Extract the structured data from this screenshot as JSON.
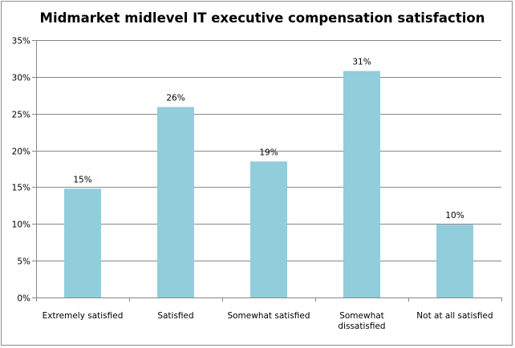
{
  "chart_data": {
    "type": "bar",
    "title": "Midmarket midlevel IT executive compensation satisfaction",
    "categories": [
      [
        "Extremely satisfied"
      ],
      [
        "Satisfied"
      ],
      [
        "Somewhat satisfied"
      ],
      [
        "Somewhat",
        "dissatisfied"
      ],
      [
        "Not at all satisfied"
      ]
    ],
    "values": [
      15,
      26,
      19,
      31,
      10
    ],
    "plotted_values": [
      14.8,
      25.9,
      18.5,
      30.8,
      9.9
    ],
    "data_labels": [
      "15%",
      "26%",
      "19%",
      "31%",
      "10%"
    ],
    "ylim": [
      0,
      35
    ],
    "yticks": [
      0,
      5,
      10,
      15,
      20,
      25,
      30,
      35
    ],
    "ytick_labels": [
      "0%",
      "5%",
      "10%",
      "15%",
      "20%",
      "25%",
      "30%",
      "35%"
    ],
    "grid": true,
    "legend": "none",
    "colors": {
      "bar": "#92cddc",
      "grid": "#878787",
      "axis": "#878787"
    }
  }
}
